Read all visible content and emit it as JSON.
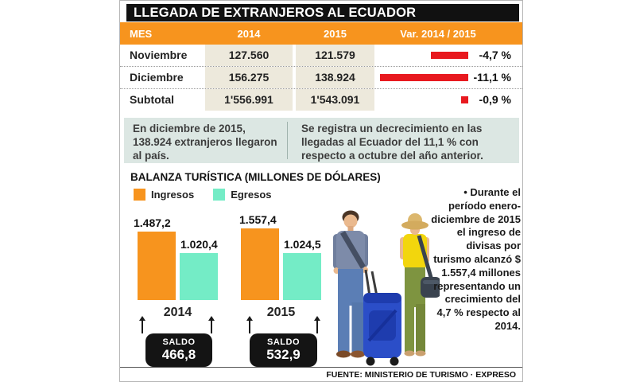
{
  "header": {
    "title": "LLEGADA DE EXTRANJEROS AL ECUADOR"
  },
  "table": {
    "columns": [
      "MES",
      "2014",
      "2015",
      "Var. 2014 / 2015"
    ],
    "rows": [
      {
        "mes": "Noviembre",
        "y2014": "127.560",
        "y2015": "121.579",
        "var_label": "-4,7 %",
        "var_value": -4.7
      },
      {
        "mes": "Diciembre",
        "y2014": "156.275",
        "y2015": "138.924",
        "var_label": "-11,1 %",
        "var_value": -11.1
      },
      {
        "mes": "Subtotal",
        "y2014": "1'556.991",
        "y2015": "1'543.091",
        "var_label": "-0,9 %",
        "var_value": -0.9
      }
    ]
  },
  "notes": {
    "left": "En diciembre de 2015, 138.924 extranjeros llegaron al país.",
    "right": "Se registra un decrecimiento en las llegadas al Ecuador del 11,1 % con respecto a octubre del año anterior."
  },
  "chart_data": {
    "type": "bar",
    "title": "BALANZA TURÍSTICA (MILLONES DE DÓLARES)",
    "categories": [
      "2014",
      "2015"
    ],
    "series": [
      {
        "name": "Ingresos",
        "color": "#F7941E",
        "values": [
          1487.2,
          1557.4
        ],
        "labels": [
          "1.487,2",
          "1.557,4"
        ]
      },
      {
        "name": "Egresos",
        "color": "#74ECC6",
        "values": [
          1020.4,
          1024.5
        ],
        "labels": [
          "1.020,4",
          "1.024,5"
        ]
      }
    ],
    "saldo": {
      "label": "SALDO",
      "values": [
        466.8,
        532.9
      ],
      "labels": [
        "466,8",
        "532,9"
      ]
    },
    "ylim": [
      0,
      1600
    ],
    "grid": false,
    "legend_position": "top-left"
  },
  "aside": {
    "text": "• Durante el período enero-diciembre de 2015 el ingreso de divisas por turismo alcanzó $ 1.557,4 millones representando un crecimiento del 4,7 % respecto al 2014."
  },
  "footer": {
    "source": "FUENTE: MINISTERIO DE TURISMO · EXPRESO"
  },
  "colors": {
    "accent_orange": "#F7941E",
    "mint_green": "#74ECC6",
    "negative_red": "#E8191F",
    "value_column_beige": "#EDE9DC",
    "note_background": "#DCE7E3",
    "header_black": "#111111"
  }
}
